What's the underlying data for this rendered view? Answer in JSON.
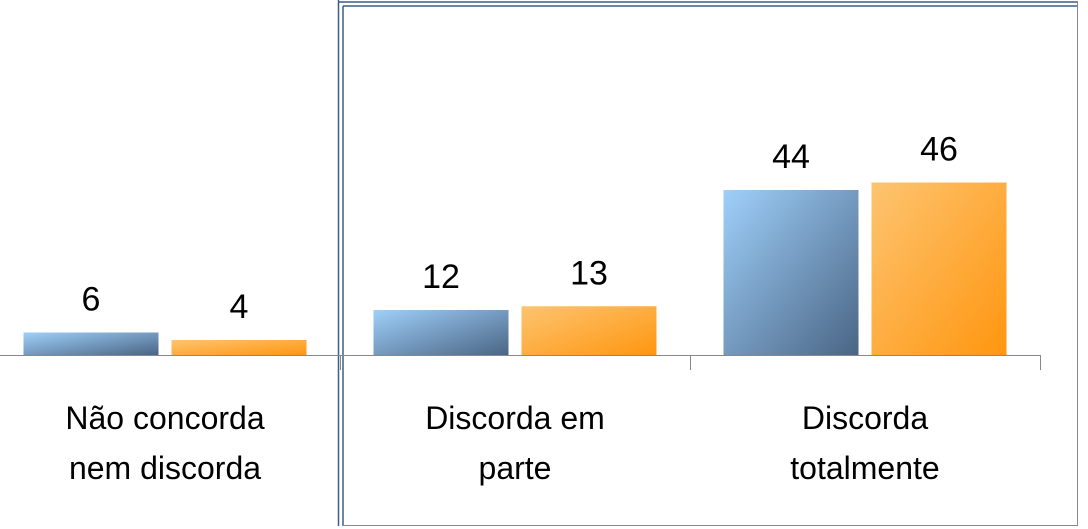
{
  "chart_data": {
    "type": "bar",
    "categories": [
      "Não concorda nem discorda",
      "Discorda em parte",
      "Discorda totalmente"
    ],
    "series": [
      {
        "color": "#4a6585",
        "values": [
          6,
          12,
          44
        ]
      },
      {
        "color": "#ff9610",
        "values": [
          4,
          13,
          46
        ]
      }
    ],
    "ylim": [
      0,
      50
    ]
  }
}
